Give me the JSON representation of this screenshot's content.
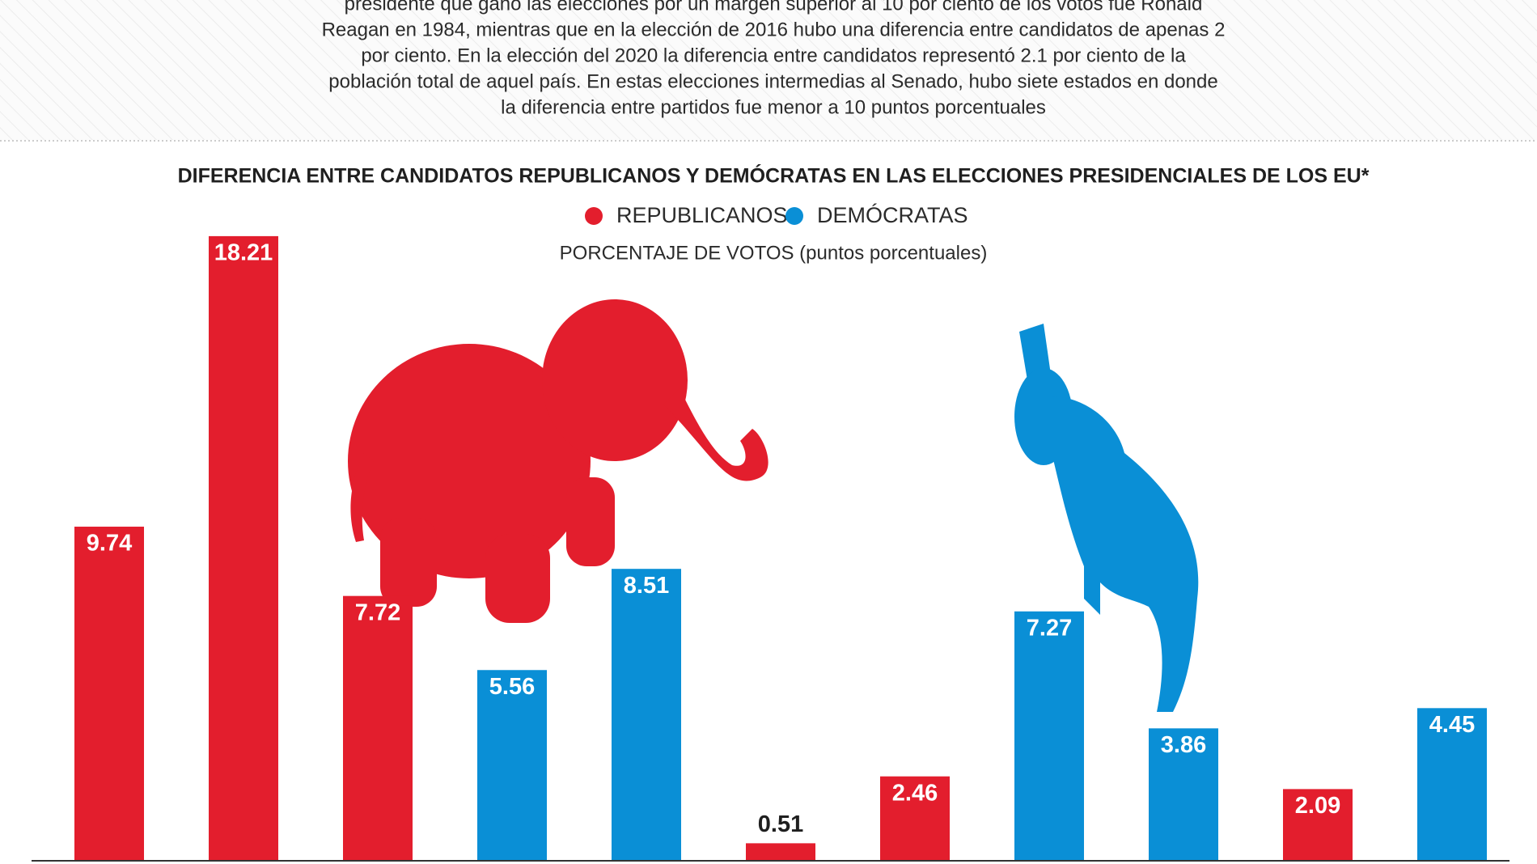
{
  "header": {
    "lines": [
      "presidente que ganó las elecciones por un margen superior al 10 por ciento de los votos fue Ronald",
      "Reagan en 1984, mientras que en la elección de 2016 hubo una diferencia entre candidatos de apenas 2",
      "por ciento. En la elección del 2020 la diferencia entre candidatos representó 2.1 por ciento de la",
      "población total de aquel país. En estas elecciones intermedias al Senado, hubo siete estados en donde",
      "la diferencia entre partidos fue menor a 10 puntos porcentuales"
    ]
  },
  "chart_data": {
    "type": "bar",
    "title": "DIFERENCIA ENTRE CANDIDATOS REPUBLICANOS Y DEMÓCRATAS EN LAS ELECCIONES PRESIDENCIALES DE LOS EU*",
    "ylabel": "PORCENTAJE DE VOTOS (puntos porcentuales)",
    "series": [
      {
        "name": "REPUBLICANOS",
        "color": "#e31e2d",
        "values": [
          9.74,
          18.21,
          7.72,
          null,
          null,
          0.51,
          2.46,
          null,
          null,
          2.09,
          null
        ]
      },
      {
        "name": "DEMÓCRATAS",
        "color": "#0a8fd6",
        "values": [
          null,
          null,
          null,
          5.56,
          8.51,
          null,
          null,
          7.27,
          3.86,
          null,
          4.45
        ]
      }
    ],
    "ylim": [
      0,
      20
    ]
  }
}
